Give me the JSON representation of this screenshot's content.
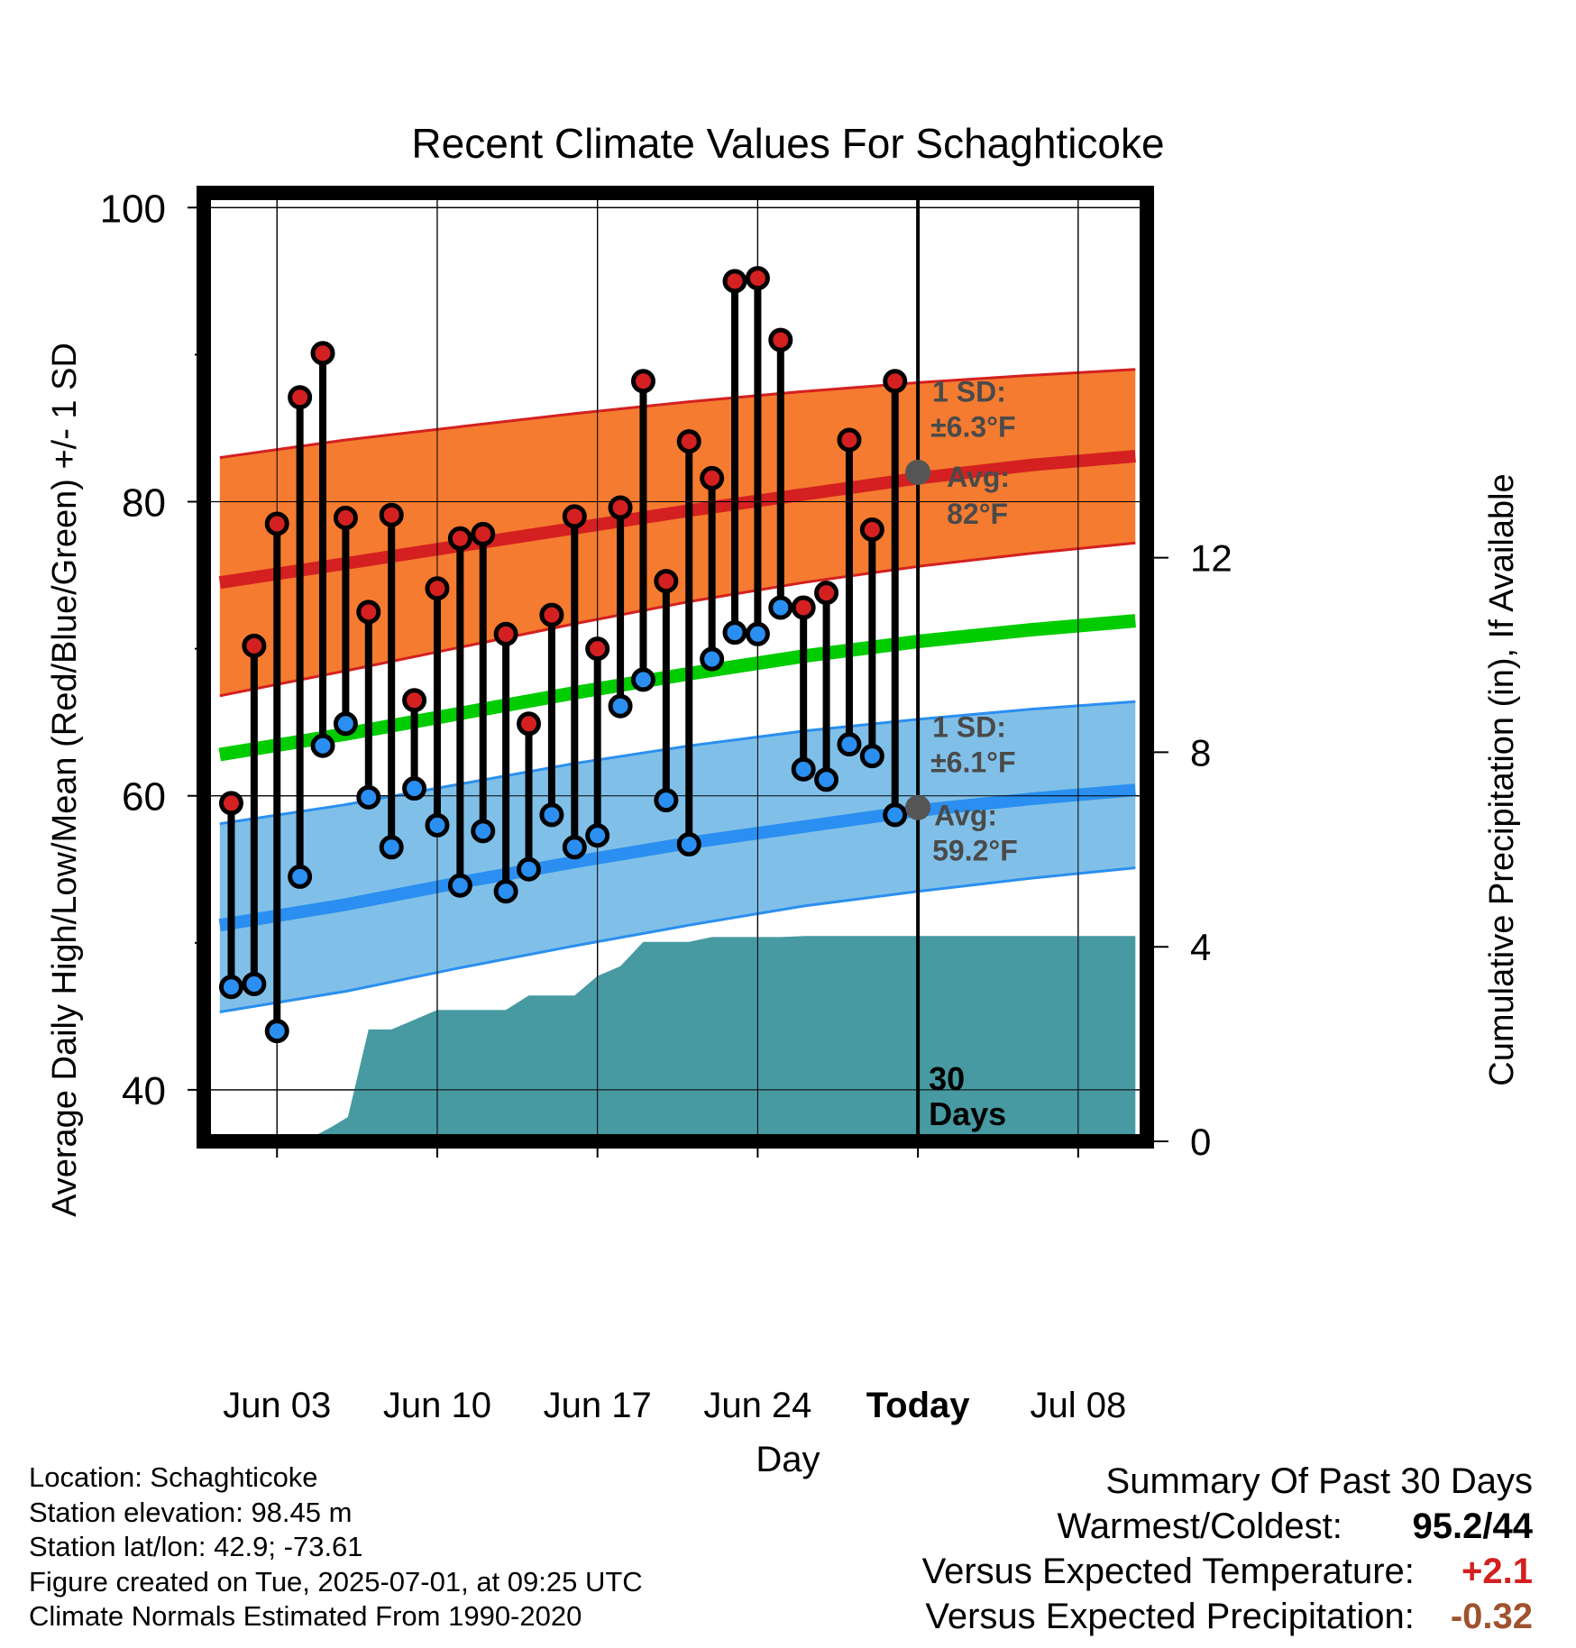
{
  "chart_data": {
    "type": "line",
    "title": "Recent Climate Values For Schaghticoke",
    "xlabel": "Day",
    "ylabel": "Average Daily High/Low/Mean (Red/Blue/Green) +/- 1 SD",
    "y2label": "Cumulative Precipitation (in), If Available",
    "ylim": [
      36.5,
      101
    ],
    "y2lim": [
      0,
      19.5
    ],
    "y_ticks": [
      "100",
      "80",
      "60",
      "40"
    ],
    "y2_ticks": [
      "0",
      "4",
      "8",
      "12"
    ],
    "x_tick_labels": [
      "Jun 03",
      "Jun 10",
      "Jun 17",
      "Jun 24",
      "Today",
      "Jul 08"
    ],
    "x_range_days": [
      -31.2,
      10.0
    ],
    "x_tick_days": [
      -28,
      -21,
      -14,
      -7,
      0,
      7
    ],
    "today_label": "30 Days",
    "grid": true,
    "normal_high_band": {
      "label_sd": "1 SD:",
      "label_sd_value": "±6.3°F",
      "label_avg": "Avg:",
      "label_avg_value": "82°F",
      "x": [
        -30.5,
        -25,
        -20,
        -15,
        -10,
        -5,
        0,
        5,
        9.5
      ],
      "avg": [
        74.5,
        75.8,
        77.0,
        78.2,
        79.4,
        80.5,
        81.6,
        82.5,
        83.1
      ],
      "upper": [
        83.0,
        84.2,
        85.1,
        86.0,
        86.8,
        87.5,
        88.1,
        88.6,
        89.0
      ],
      "lower": [
        66.8,
        68.5,
        70.1,
        71.7,
        73.2,
        74.5,
        75.6,
        76.5,
        77.2
      ]
    },
    "normal_low_band": {
      "label_sd": "1 SD:",
      "label_sd_value": "±6.1°F",
      "label_avg": "Avg:",
      "label_avg_value": "59.2°F",
      "x": [
        -30.5,
        -25,
        -20,
        -15,
        -10,
        -5,
        0,
        5,
        9.5
      ],
      "avg": [
        51.2,
        52.6,
        54.1,
        55.5,
        56.8,
        57.9,
        59.0,
        59.8,
        60.4
      ],
      "upper": [
        58.1,
        59.4,
        60.8,
        62.2,
        63.4,
        64.4,
        65.2,
        65.9,
        66.4
      ],
      "lower": [
        45.3,
        46.7,
        48.3,
        49.8,
        51.2,
        52.5,
        53.5,
        54.4,
        55.1
      ]
    },
    "normal_mean_line": {
      "x": [
        -30.5,
        -25,
        -20,
        -15,
        -10,
        -5,
        0,
        5,
        9.5
      ],
      "values": [
        62.8,
        64.2,
        65.6,
        67.0,
        68.3,
        69.5,
        70.5,
        71.3,
        71.9
      ]
    },
    "today_marker_high": 82.0,
    "today_marker_low": 59.2,
    "series": [
      {
        "name": "High",
        "color": "#d42020",
        "x": [
          -30,
          -29,
          -28,
          -27,
          -26,
          -25,
          -24,
          -23,
          -22,
          -21,
          -20,
          -19,
          -18,
          -17,
          -16,
          -15,
          -14,
          -13,
          -12,
          -11,
          -10,
          -9,
          -8,
          -7,
          -6,
          -5,
          -4,
          -3,
          -2,
          -1
        ],
        "values": [
          59.5,
          70.2,
          78.5,
          87.1,
          90.1,
          78.9,
          72.5,
          79.1,
          66.5,
          74.1,
          77.5,
          77.8,
          71.0,
          64.9,
          72.3,
          79.0,
          70.0,
          79.6,
          88.2,
          74.6,
          84.1,
          81.6,
          95.0,
          95.2,
          91.0,
          72.8,
          73.8,
          84.2,
          78.1,
          88.2
        ]
      },
      {
        "name": "Low",
        "color": "#2a8ff0",
        "x": [
          -30,
          -29,
          -28,
          -27,
          -26,
          -25,
          -24,
          -23,
          -22,
          -21,
          -20,
          -19,
          -18,
          -17,
          -16,
          -15,
          -14,
          -13,
          -12,
          -11,
          -10,
          -9,
          -8,
          -7,
          -6,
          -5,
          -4,
          -3,
          -2,
          -1
        ],
        "values": [
          47.0,
          47.2,
          44.0,
          54.5,
          63.4,
          64.9,
          59.9,
          56.5,
          60.5,
          58.0,
          53.9,
          57.6,
          53.5,
          55.0,
          58.7,
          56.5,
          57.3,
          66.1,
          67.9,
          59.7,
          56.7,
          69.3,
          71.1,
          71.0,
          72.8,
          61.8,
          61.1,
          63.5,
          62.7,
          58.7
        ]
      },
      {
        "name": "Cumulative Precipitation",
        "color": "#479aa1",
        "x": [
          -26.8,
          -25.6,
          -24.9,
          -24.0,
          -23.0,
          -22.0,
          -21.0,
          -20.0,
          -19.0,
          -18.0,
          -17.0,
          -16.0,
          -15.0,
          -14.0,
          -13.0,
          -12.0,
          -11.0,
          -10.0,
          -9.0,
          -8.0,
          -7.0,
          -6.0,
          -5.0,
          -4.0,
          -3.0,
          -2.0,
          -1.0,
          0.0,
          1.0,
          5.0,
          9.5
        ],
        "values": [
          0.0,
          0.3,
          0.5,
          2.3,
          2.3,
          2.5,
          2.7,
          2.7,
          2.7,
          2.7,
          3.0,
          3.0,
          3.0,
          3.4,
          3.6,
          4.1,
          4.1,
          4.1,
          4.2,
          4.2,
          4.2,
          4.2,
          4.22,
          4.22,
          4.22,
          4.22,
          4.22,
          4.22,
          4.22,
          4.22,
          4.22
        ]
      }
    ]
  },
  "info": {
    "location": "Location: Schaghticoke",
    "elevation": "Station elevation: 98.45 m",
    "latlon": "Station lat/lon: 42.9; -73.61",
    "created": "Figure created on Tue, 2025-07-01, at 09:25 UTC",
    "normals": "Climate Normals Estimated From 1990-2020"
  },
  "summary": {
    "title": "Summary Of Past 30 Days",
    "warm_cold_label": "Warmest/Coldest:",
    "warm_cold_value": "95.2/44",
    "temp_label": "Versus Expected Temperature:",
    "temp_value": "+2.1",
    "temp_color": "#d42020",
    "precip_label": "Versus Expected Precipitation:",
    "precip_value": "-0.32",
    "precip_color": "#a0522d"
  }
}
